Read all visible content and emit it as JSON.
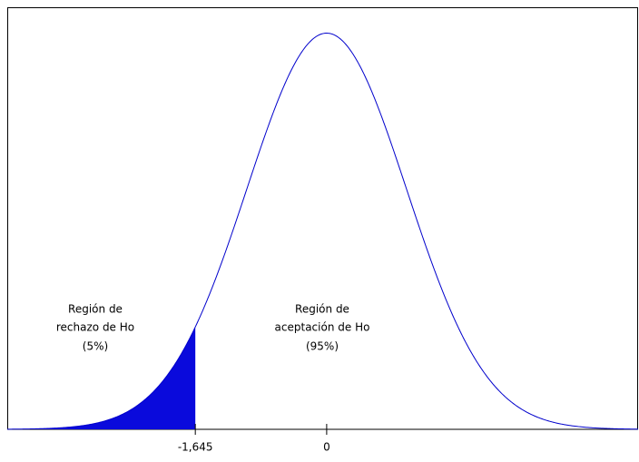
{
  "chart_data": {
    "type": "normal",
    "distribution": {
      "mean": 0,
      "sd": 1
    },
    "xlim": [
      -4,
      3.9
    ],
    "ylim": [
      0,
      0.425
    ],
    "xticks": [
      {
        "value": -1.645,
        "label": "-1,645"
      },
      0
    ],
    "line_color": "#0000cc",
    "shade_to": -1.645,
    "shade_color": "#0a0adc",
    "annotations": [
      {
        "lines": [
          "Región de",
          "rechazo de Ho",
          "(5%)"
        ]
      },
      {
        "lines": [
          "Región de",
          "aceptación de Ho",
          "(95%)"
        ]
      }
    ]
  }
}
